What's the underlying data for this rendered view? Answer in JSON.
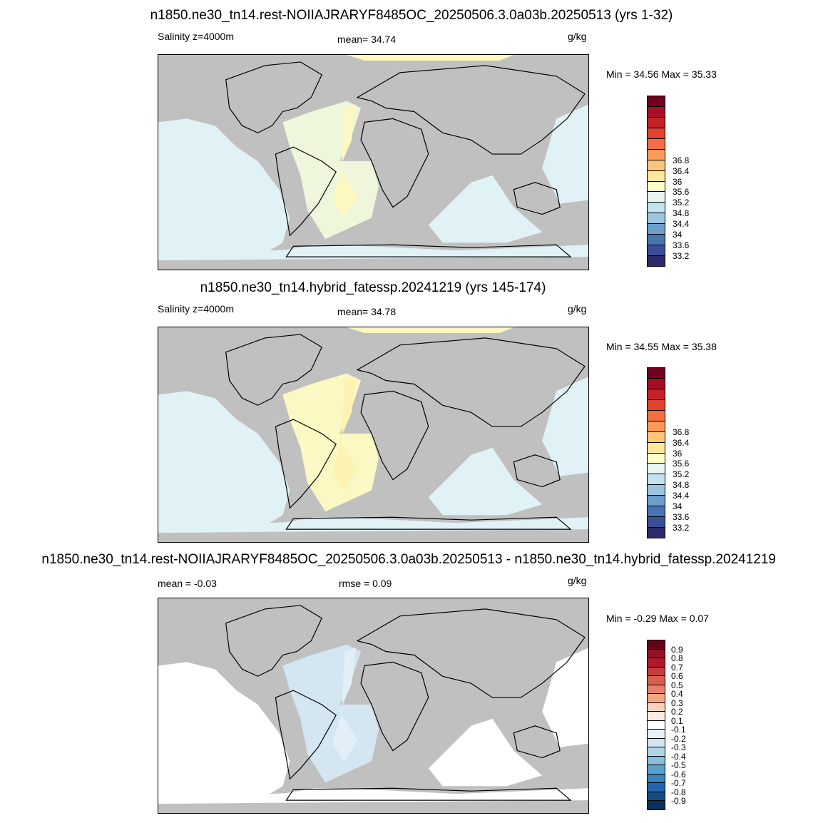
{
  "panels": [
    {
      "title": "n1850.ne30_tn14.rest-NOIIAJRARYF8485OC_20250506.3.0a03b.20250513 (yrs 1-32)",
      "left_label": "Salinity z=4000m",
      "center_label": "mean=  34.74",
      "right_label": "g/kg",
      "minmax": "Min =  34.56 Max =  35.33",
      "ocean_color": "#e1f2f7",
      "atlantic_color": "#eef6dc",
      "ridge_color": "#fdf8c0",
      "colorbar": {
        "colors": [
          "#2d2a6b",
          "#3a4f9a",
          "#4a74b4",
          "#6d9ec9",
          "#99c6df",
          "#c3e3ee",
          "#e7f5f5",
          "#fefec4",
          "#fee69a",
          "#fdc57a",
          "#fc9b58",
          "#f46d43",
          "#e0422f",
          "#c42128",
          "#a50f25",
          "#700020"
        ],
        "labels": [
          "33.2",
          "33.6",
          "34",
          "34.4",
          "34.8",
          "35.2",
          "35.6",
          "36",
          "36.4",
          "36.8"
        ]
      }
    },
    {
      "title": "n1850.ne30_tn14.hybrid_fatessp.20241219 (yrs 145-174)",
      "left_label": "Salinity z=4000m",
      "center_label": "mean=  34.78",
      "right_label": "g/kg",
      "minmax": "Min =  34.55 Max =  35.38",
      "ocean_color": "#e1f2f7",
      "atlantic_color": "#fcf8c4",
      "ridge_color": "#fdf3b0",
      "colorbar": {
        "colors": [
          "#2d2a6b",
          "#3a4f9a",
          "#4a74b4",
          "#6d9ec9",
          "#99c6df",
          "#c3e3ee",
          "#e7f5f5",
          "#fefec4",
          "#fee69a",
          "#fdc57a",
          "#fc9b58",
          "#f46d43",
          "#e0422f",
          "#c42128",
          "#a50f25",
          "#700020"
        ],
        "labels": [
          "33.2",
          "33.6",
          "34",
          "34.4",
          "34.8",
          "35.2",
          "35.6",
          "36",
          "36.4",
          "36.8"
        ]
      }
    },
    {
      "title": "n1850.ne30_tn14.rest-NOIIAJRARYF8485OC_20250506.3.0a03b.20250513 - n1850.ne30_tn14.hybrid_fatessp.20241219",
      "left_label": "mean =  -0.03",
      "center_label": "rmse =    0.09",
      "right_label": "g/kg",
      "minmax": "Min =  -0.29 Max =   0.07",
      "ocean_color": "#ffffff",
      "atlantic_color": "#d3e6f1",
      "ridge_color": "#e3eff6",
      "colorbar": {
        "colors": [
          "#053061",
          "#134c87",
          "#2166ac",
          "#3a83bb",
          "#5aa0cd",
          "#87bedc",
          "#b0d4e7",
          "#d1e5f0",
          "#e7f1f7",
          "#ffffff",
          "#fdebe0",
          "#fbd1bc",
          "#f4a683",
          "#e7806a",
          "#d6604d",
          "#c43c3c",
          "#b2182b",
          "#921028",
          "#67001f"
        ],
        "labels": [
          "-0.9",
          "-0.8",
          "-0.7",
          "-0.6",
          "-0.5",
          "-0.4",
          "-0.3",
          "-0.2",
          "-0.1",
          "0.1",
          "0.2",
          "0.3",
          "0.4",
          "0.5",
          "0.6",
          "0.7",
          "0.8",
          "0.9"
        ]
      }
    }
  ]
}
